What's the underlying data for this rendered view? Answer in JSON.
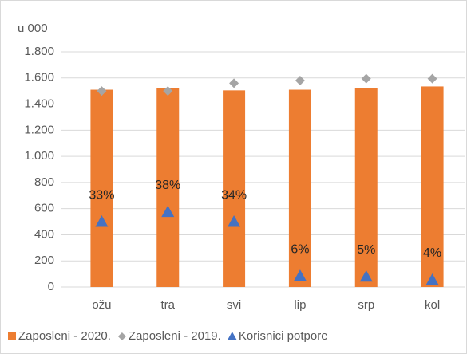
{
  "chart_data": {
    "type": "bar",
    "axis_unit": "u 000",
    "categories": [
      "ožu",
      "tra",
      "svi",
      "lip",
      "srp",
      "kol"
    ],
    "series": [
      {
        "name": "Zaposleni - 2020.",
        "color": "#ED7D31",
        "marker": "bar",
        "values": [
          1510,
          1525,
          1505,
          1510,
          1525,
          1535
        ]
      },
      {
        "name": "Zaposleni - 2019.",
        "color": "#A5A5A5",
        "marker": "diamond",
        "values": [
          1500,
          1500,
          1560,
          1580,
          1595,
          1595
        ]
      },
      {
        "name": "Korisnici potpore",
        "color": "#4472C4",
        "marker": "triangle",
        "values": [
          500,
          575,
          500,
          85,
          80,
          55
        ],
        "point_labels": [
          "33%",
          "38%",
          "34%",
          "6%",
          "5%",
          "4%"
        ]
      }
    ],
    "ylim": [
      0,
      1800
    ],
    "yticks": [
      0,
      200,
      400,
      600,
      800,
      {
        "value": 1000,
        "label": "1.000"
      },
      {
        "value": 1200,
        "label": "1.200"
      },
      {
        "value": 1400,
        "label": "1.400"
      },
      {
        "value": 1600,
        "label": "1.600"
      },
      {
        "value": 1800,
        "label": "1.800"
      }
    ],
    "grid": true,
    "legend": "bottom"
  }
}
